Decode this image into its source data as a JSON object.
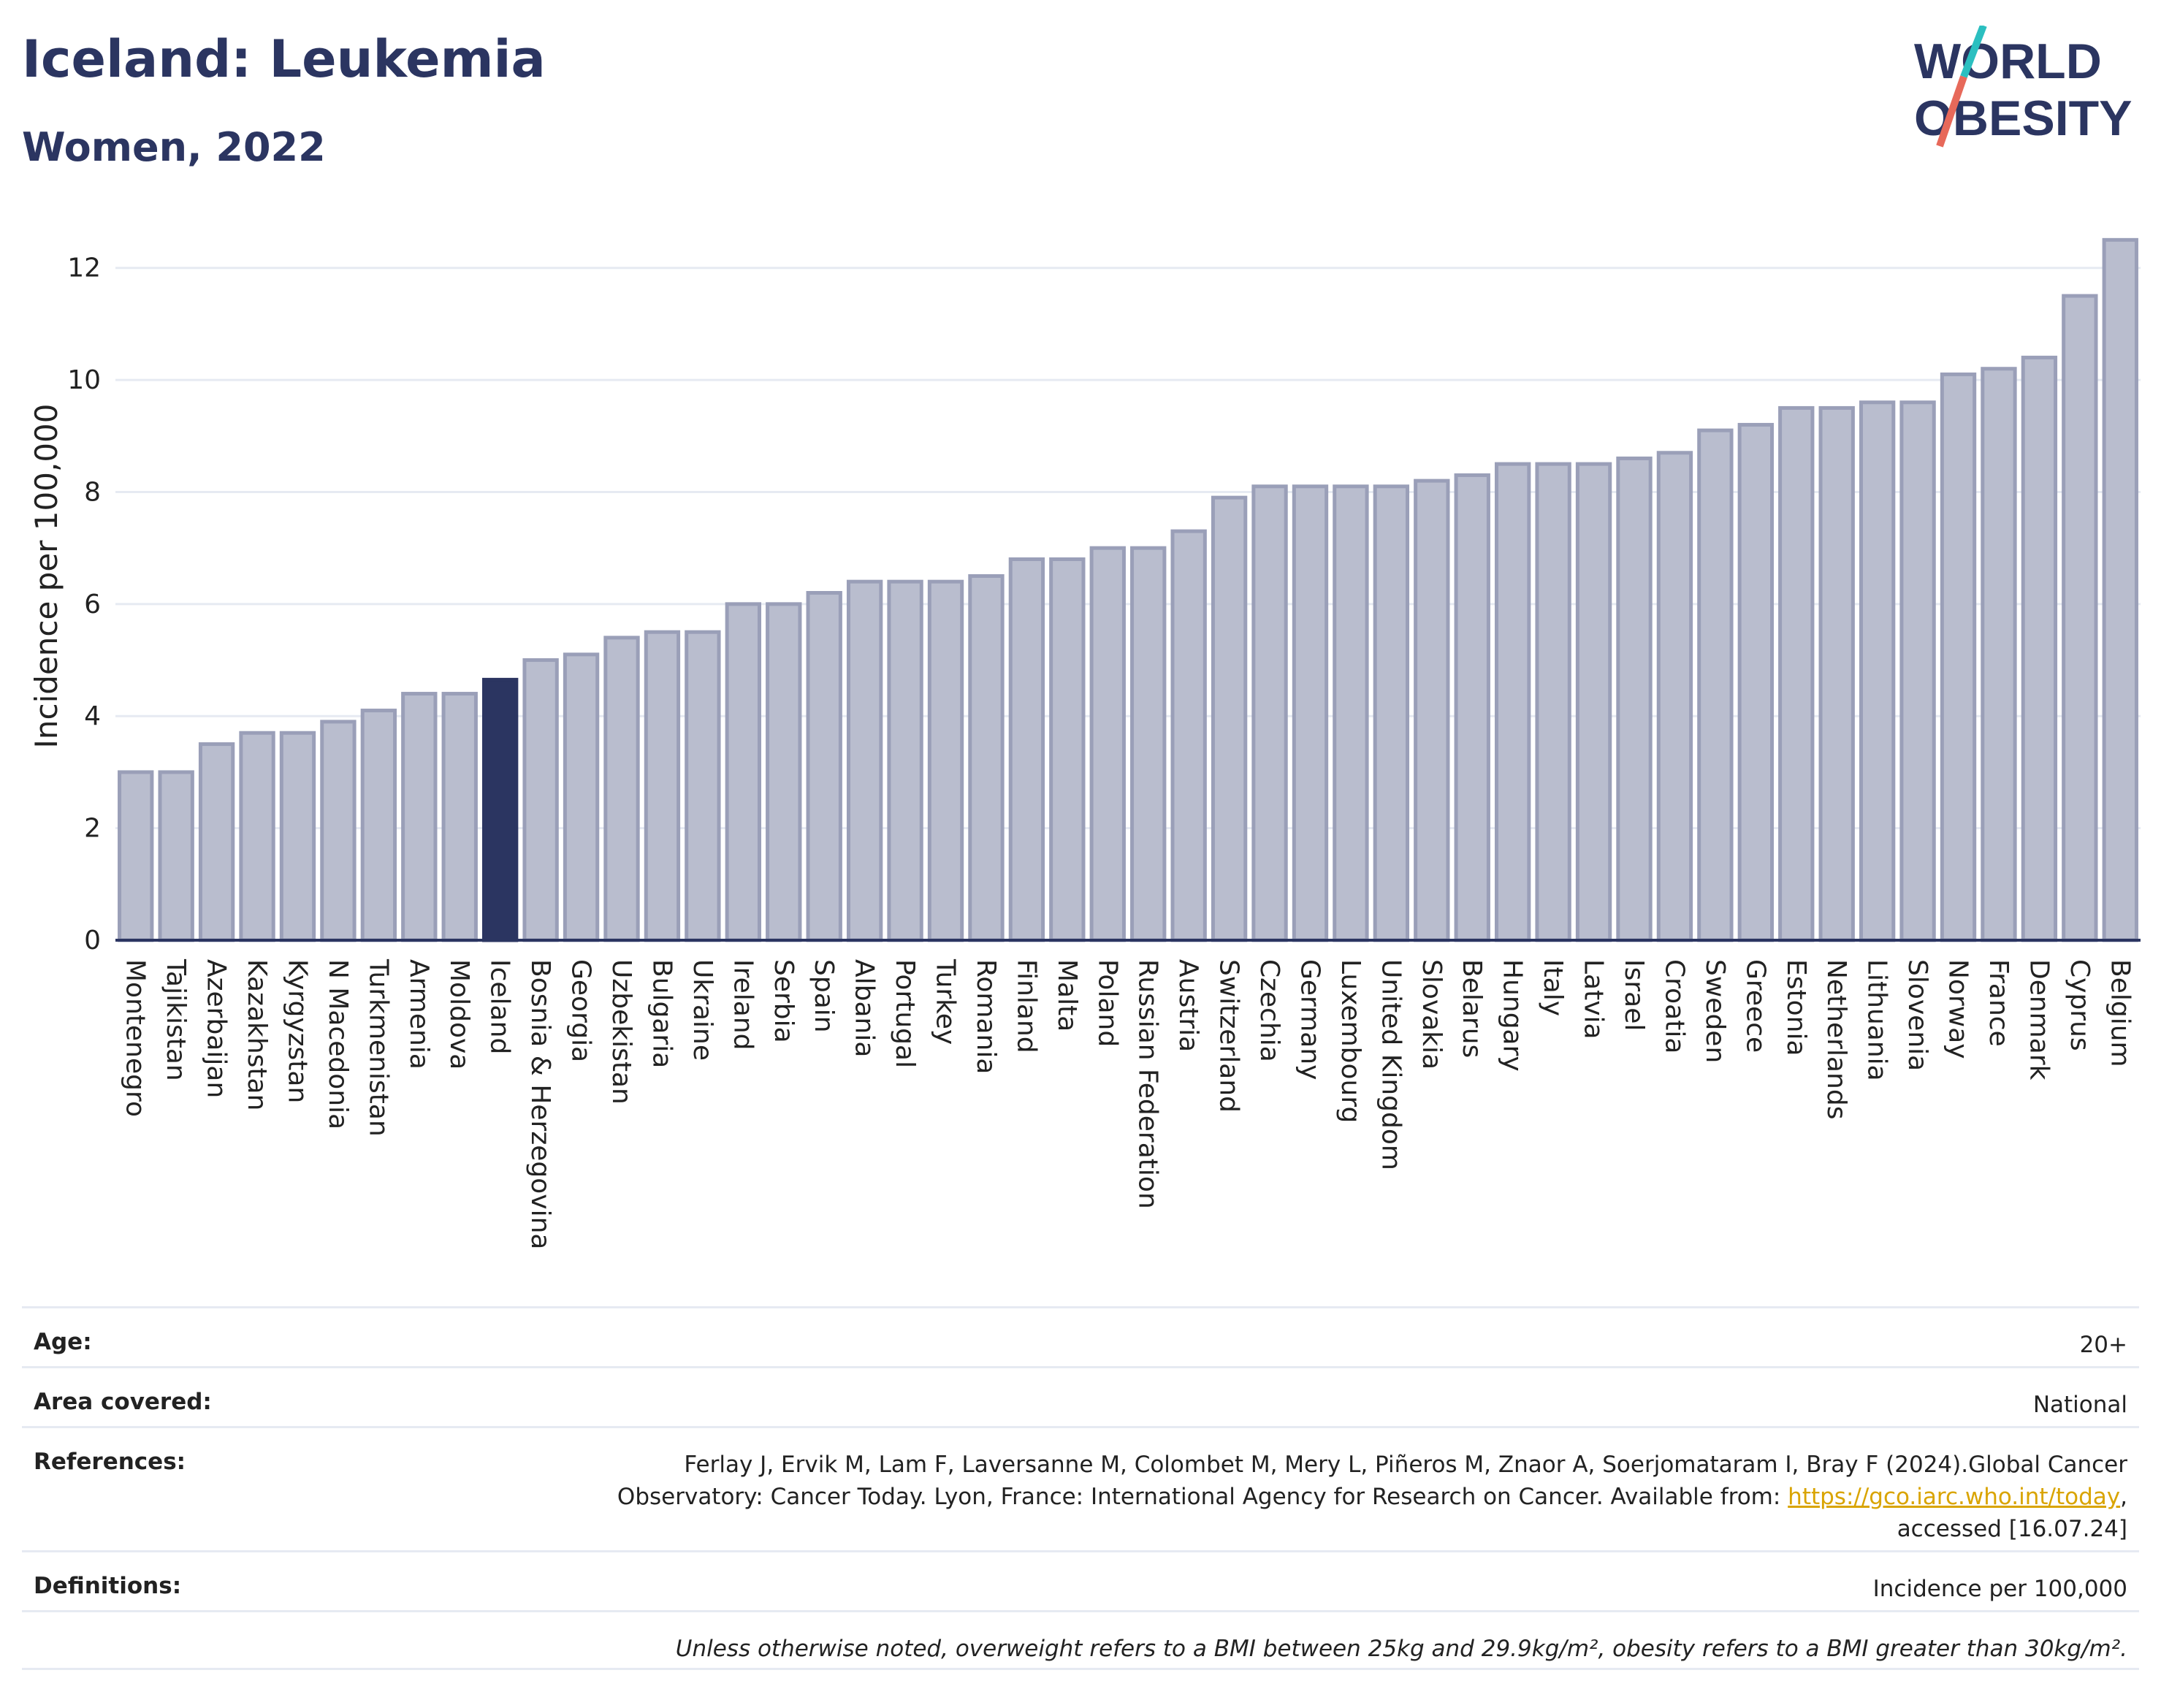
{
  "header": {
    "title": "Iceland: Leukemia",
    "subtitle": "Women, 2022"
  },
  "logo": {
    "line1": "WORLD",
    "line2": "OBESITY",
    "colors": {
      "text": "#2b3561",
      "teal": "#2bbfc0",
      "coral": "#e7695a"
    }
  },
  "colors": {
    "bar": "#b9bdce",
    "bar_edge": "#9a9fb8",
    "highlight": "#2b3561",
    "axis": "#2b3561",
    "grid": "#e6eaf2"
  },
  "chart_data": {
    "type": "bar",
    "title": "Iceland: Leukemia",
    "subtitle": "Women, 2022",
    "xlabel": "",
    "ylabel": "Incidence per 100,000",
    "ylim": [
      0,
      13
    ],
    "yticks": [
      0,
      2,
      4,
      6,
      8,
      10,
      12
    ],
    "grid": true,
    "highlight": "Iceland",
    "categories": [
      "Montenegro",
      "Tajikistan",
      "Azerbaijan",
      "Kazakhstan",
      "Kyrgyzstan",
      "N Macedonia",
      "Turkmenistan",
      "Armenia",
      "Moldova",
      "Iceland",
      "Bosnia & Herzegovina",
      "Georgia",
      "Uzbekistan",
      "Bulgaria",
      "Ukraine",
      "Ireland",
      "Serbia",
      "Spain",
      "Albania",
      "Portugal",
      "Turkey",
      "Romania",
      "Finland",
      "Malta",
      "Poland",
      "Russian Federation",
      "Austria",
      "Switzerland",
      "Czechia",
      "Germany",
      "Luxembourg",
      "United Kingdom",
      "Slovakia",
      "Belarus",
      "Hungary",
      "Italy",
      "Latvia",
      "Israel",
      "Croatia",
      "Sweden",
      "Greece",
      "Estonia",
      "Netherlands",
      "Lithuania",
      "Slovenia",
      "Norway",
      "France",
      "Denmark",
      "Cyprus",
      "Belgium"
    ],
    "values": [
      3.0,
      3.0,
      3.5,
      3.7,
      3.7,
      3.9,
      4.1,
      4.4,
      4.4,
      4.65,
      5.0,
      5.1,
      5.4,
      5.5,
      5.5,
      6.0,
      6.0,
      6.2,
      6.4,
      6.4,
      6.4,
      6.5,
      6.8,
      6.8,
      7.0,
      7.0,
      7.3,
      7.9,
      8.1,
      8.1,
      8.1,
      8.1,
      8.2,
      8.3,
      8.5,
      8.5,
      8.5,
      8.6,
      8.7,
      9.1,
      9.2,
      9.5,
      9.5,
      9.6,
      9.6,
      10.1,
      10.2,
      10.4,
      11.5,
      12.5
    ]
  },
  "info": {
    "age_label": "Age:",
    "age_value": "20+",
    "area_label": "Area covered:",
    "area_value": "National",
    "references_label": "References:",
    "references_text_1": "Ferlay J, Ervik M, Lam F, Laversanne M, Colombet M, Mery L, Piñeros M, Znaor A, Soerjomataram I, Bray F (2024).Global Cancer",
    "references_text_2": "Observatory: Cancer Today. Lyon, France: International Agency for Research on Cancer. Available from: ",
    "references_link": "https://gco.iarc.who.int/today",
    "references_text_3": "accessed [16.07.24]",
    "definitions_label": "Definitions:",
    "definitions_value": "Incidence per 100,000",
    "note": "Unless otherwise noted, overweight refers to a BMI between 25kg and 29.9kg/m², obesity refers to a BMI greater than 30kg/m²."
  }
}
